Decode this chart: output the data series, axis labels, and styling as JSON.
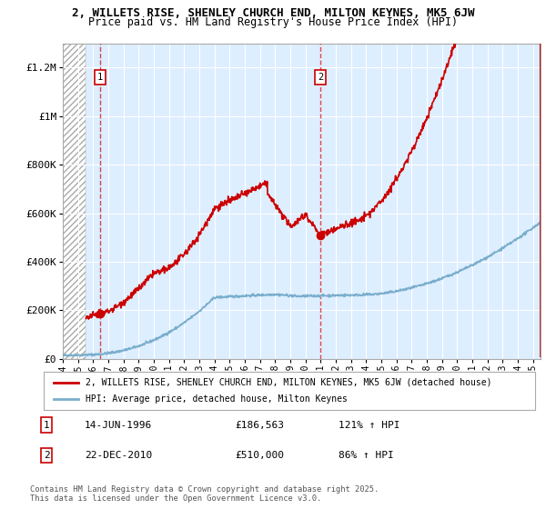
{
  "title_line1": "2, WILLETS RISE, SHENLEY CHURCH END, MILTON KEYNES, MK5 6JW",
  "title_line2": "Price paid vs. HM Land Registry's House Price Index (HPI)",
  "ylim": [
    0,
    1300000
  ],
  "xlim_start": 1994.0,
  "xlim_end": 2025.5,
  "yticks": [
    0,
    200000,
    400000,
    600000,
    800000,
    1000000,
    1200000
  ],
  "ytick_labels": [
    "£0",
    "£200K",
    "£400K",
    "£600K",
    "£800K",
    "£1M",
    "£1.2M"
  ],
  "background_color": "#ffffff",
  "plot_bg_color": "#ddeeff",
  "grid_color": "#ffffff",
  "red_line_color": "#cc0000",
  "blue_line_color": "#7aaecc",
  "marker_color": "#cc0000",
  "transaction1_x": 1996.45,
  "transaction1_y": 186563,
  "transaction2_x": 2010.98,
  "transaction2_y": 510000,
  "legend_red_label": "2, WILLETS RISE, SHENLEY CHURCH END, MILTON KEYNES, MK5 6JW (detached house)",
  "legend_blue_label": "HPI: Average price, detached house, Milton Keynes",
  "table_row1": [
    "1",
    "14-JUN-1996",
    "£186,563",
    "121% ↑ HPI"
  ],
  "table_row2": [
    "2",
    "22-DEC-2010",
    "£510,000",
    "86% ↑ HPI"
  ],
  "copyright_text": "Contains HM Land Registry data © Crown copyright and database right 2025.\nThis data is licensed under the Open Government Licence v3.0.",
  "hatch_end_year": 1995.5,
  "xticks": [
    1994,
    1995,
    1996,
    1997,
    1998,
    1999,
    2000,
    2001,
    2002,
    2003,
    2004,
    2005,
    2006,
    2007,
    2008,
    2009,
    2010,
    2011,
    2012,
    2013,
    2014,
    2015,
    2016,
    2017,
    2018,
    2019,
    2020,
    2021,
    2022,
    2023,
    2024,
    2025
  ]
}
